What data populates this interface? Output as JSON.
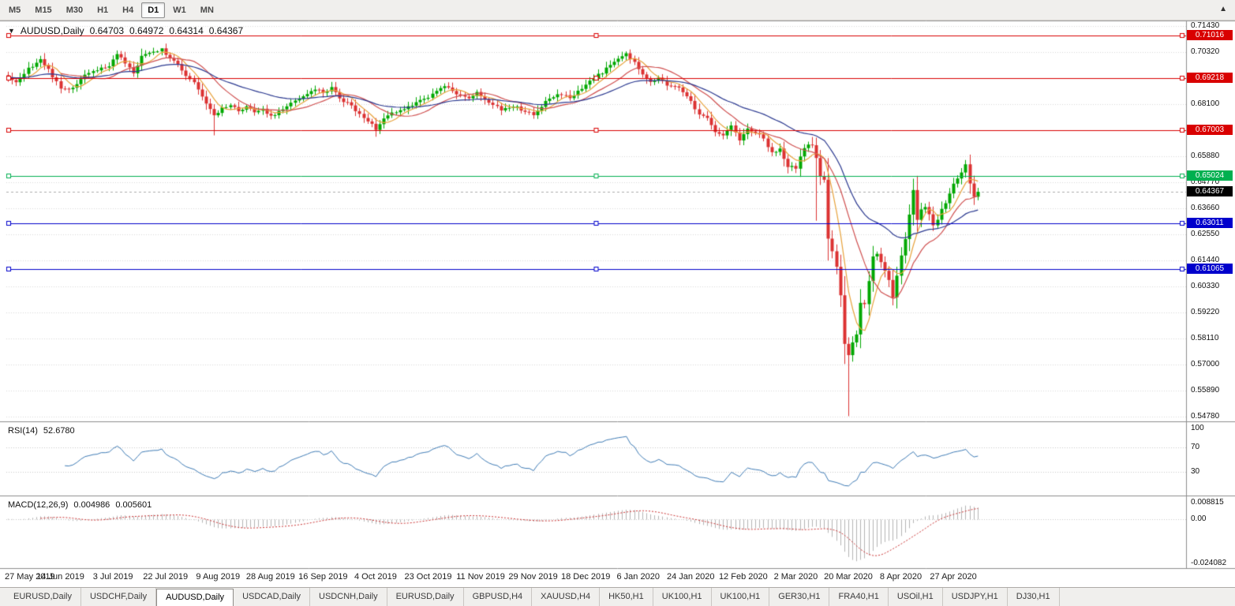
{
  "toolbar": {
    "timeframes": [
      {
        "label": "M5"
      },
      {
        "label": "M15"
      },
      {
        "label": "M30"
      },
      {
        "label": "H1"
      },
      {
        "label": "H4"
      },
      {
        "label": "D1",
        "active": true
      },
      {
        "label": "W1"
      },
      {
        "label": "MN"
      }
    ],
    "scroll_icon": "▲"
  },
  "chart": {
    "title": {
      "marker": "▼",
      "symbol": "AUDUSD,Daily",
      "open": "0.64703",
      "high": "0.64972",
      "low": "0.64314",
      "close": "0.64367"
    },
    "price_axis_labels": [
      "0.71430",
      "0.70320",
      "0.69210",
      "0.68100",
      "0.66990",
      "0.65880",
      "0.64770",
      "0.63660",
      "0.62550",
      "0.61440",
      "0.60330",
      "0.59220",
      "0.58110",
      "0.57000",
      "0.55890",
      "0.54780"
    ],
    "hlines": [
      {
        "price": 0.71016,
        "label": "0.71016",
        "color": "#d90000",
        "type": "resistance"
      },
      {
        "price": 0.69218,
        "label": "0.69218",
        "color": "#d90000",
        "type": "resistance"
      },
      {
        "price": 0.67003,
        "label": "0.67003",
        "color": "#d90000",
        "type": "resistance"
      },
      {
        "price": 0.65024,
        "label": "0.65024",
        "color": "#00b050",
        "type": "level"
      },
      {
        "price": 0.63011,
        "label": "0.63011",
        "color": "#0000cc",
        "type": "support"
      },
      {
        "price": 0.61065,
        "label": "0.61065",
        "color": "#0000cc",
        "type": "support"
      }
    ],
    "bid_line": {
      "price": 0.64367,
      "label": "0.64367",
      "bg": "#000000",
      "fg": "#ffffff"
    }
  },
  "rsi": {
    "name": "RSI(14)",
    "value": "52.6780",
    "axis_labels": [
      "100",
      "70",
      "30"
    ],
    "levels": [
      70,
      30
    ],
    "line_color": "#3f7cb6"
  },
  "macd": {
    "name": "MACD(12,26,9)",
    "value_main": "0.004986",
    "value_signal": "0.005601",
    "axis_labels": [
      "0.008815",
      "0.00",
      "-0.024082"
    ],
    "axis_max": 0.008815,
    "axis_min": -0.024082,
    "hist_color": "#b4b4b4",
    "signal_color": "#cc3333"
  },
  "date_axis": [
    "27 May 2019",
    "14 Jun 2019",
    "3 Jul 2019",
    "22 Jul 2019",
    "9 Aug 2019",
    "28 Aug 2019",
    "16 Sep 2019",
    "4 Oct 2019",
    "23 Oct 2019",
    "11 Nov 2019",
    "29 Nov 2019",
    "18 Dec 2019",
    "6 Jan 2020",
    "24 Jan 2020",
    "12 Feb 2020",
    "2 Mar 2020",
    "20 Mar 2020",
    "8 Apr 2020",
    "27 Apr 2020"
  ],
  "tabs": [
    {
      "label": "EURUSD,Daily"
    },
    {
      "label": "USDCHF,Daily"
    },
    {
      "label": "AUDUSD,Daily",
      "active": true
    },
    {
      "label": "USDCAD,Daily"
    },
    {
      "label": "USDCNH,Daily"
    },
    {
      "label": "EURUSD,Daily"
    },
    {
      "label": "GBPUSD,H4"
    },
    {
      "label": "XAUUSD,H4"
    },
    {
      "label": "HK50,H1"
    },
    {
      "label": "UK100,H1"
    },
    {
      "label": "UK100,H1"
    },
    {
      "label": "GER30,H1"
    },
    {
      "label": "FRA40,H1"
    },
    {
      "label": "USOil,H1"
    },
    {
      "label": "USDJPY,H1"
    },
    {
      "label": "DJ30,H1"
    }
  ],
  "chart_data": {
    "type": "candlestick",
    "symbol": "AUDUSD",
    "timeframe": "Daily",
    "bars": 241,
    "up_color": "#00a800",
    "down_color": "#dc3232",
    "grid_color": "#d8d8d8",
    "price_axis": {
      "top_price": 0.7143,
      "step": 0.0111,
      "gridlines": 16
    },
    "close_path": [
      [
        0,
        0.6921
      ],
      [
        2,
        0.6905
      ],
      [
        5,
        0.696
      ],
      [
        8,
        0.7
      ],
      [
        10,
        0.6958
      ],
      [
        13,
        0.6875
      ],
      [
        16,
        0.688
      ],
      [
        19,
        0.693
      ],
      [
        22,
        0.6958
      ],
      [
        25,
        0.6965
      ],
      [
        27,
        0.7028
      ],
      [
        29,
        0.6985
      ],
      [
        31,
        0.6938
      ],
      [
        33,
        0.7015
      ],
      [
        36,
        0.7038
      ],
      [
        38,
        0.7042
      ],
      [
        40,
        0.701
      ],
      [
        42,
        0.6975
      ],
      [
        44,
        0.6935
      ],
      [
        46,
        0.69
      ],
      [
        48,
        0.6845
      ],
      [
        51,
        0.676
      ],
      [
        53,
        0.6795
      ],
      [
        55,
        0.681
      ],
      [
        57,
        0.678
      ],
      [
        59,
        0.68
      ],
      [
        61,
        0.6775
      ],
      [
        63,
        0.6785
      ],
      [
        65,
        0.6758
      ],
      [
        68,
        0.679
      ],
      [
        71,
        0.683
      ],
      [
        74,
        0.6858
      ],
      [
        76,
        0.6868
      ],
      [
        78,
        0.6862
      ],
      [
        80,
        0.688
      ],
      [
        82,
        0.6835
      ],
      [
        85,
        0.68
      ],
      [
        88,
        0.6755
      ],
      [
        91,
        0.6705
      ],
      [
        93,
        0.6745
      ],
      [
        96,
        0.678
      ],
      [
        99,
        0.68
      ],
      [
        102,
        0.6825
      ],
      [
        105,
        0.685
      ],
      [
        108,
        0.689
      ],
      [
        111,
        0.6855
      ],
      [
        114,
        0.684
      ],
      [
        116,
        0.6862
      ],
      [
        119,
        0.682
      ],
      [
        122,
        0.6788
      ],
      [
        125,
        0.6805
      ],
      [
        127,
        0.6785
      ],
      [
        130,
        0.6768
      ],
      [
        133,
        0.682
      ],
      [
        136,
        0.6852
      ],
      [
        139,
        0.684
      ],
      [
        142,
        0.688
      ],
      [
        145,
        0.692
      ],
      [
        148,
        0.696
      ],
      [
        151,
        0.7
      ],
      [
        153,
        0.703
      ],
      [
        155,
        0.6985
      ],
      [
        157,
        0.6935
      ],
      [
        159,
        0.69
      ],
      [
        161,
        0.6925
      ],
      [
        163,
        0.6895
      ],
      [
        166,
        0.6875
      ],
      [
        169,
        0.6828
      ],
      [
        171,
        0.676
      ],
      [
        173,
        0.6755
      ],
      [
        175,
        0.669
      ],
      [
        177,
        0.668
      ],
      [
        179,
        0.672
      ],
      [
        181,
        0.6655
      ],
      [
        183,
        0.671
      ],
      [
        185,
        0.669
      ],
      [
        187,
        0.6665
      ],
      [
        189,
        0.66
      ],
      [
        191,
        0.6615
      ],
      [
        193,
        0.6545
      ],
      [
        195,
        0.6537
      ],
      [
        196,
        0.6587
      ],
      [
        197,
        0.6623
      ],
      [
        198,
        0.6638
      ],
      [
        199,
        0.664
      ],
      [
        200,
        0.658
      ],
      [
        201,
        0.65
      ],
      [
        202,
        0.649
      ],
      [
        203,
        0.6232
      ],
      [
        204,
        0.6185
      ],
      [
        205,
        0.612
      ],
      [
        206,
        0.5995
      ],
      [
        207,
        0.5785
      ],
      [
        208,
        0.5745
      ],
      [
        209,
        0.5795
      ],
      [
        210,
        0.5825
      ],
      [
        211,
        0.5965
      ],
      [
        212,
        0.5955
      ],
      [
        213,
        0.606
      ],
      [
        214,
        0.6165
      ],
      [
        215,
        0.617
      ],
      [
        216,
        0.6135
      ],
      [
        217,
        0.6095
      ],
      [
        218,
        0.606
      ],
      [
        219,
        0.599
      ],
      [
        220,
        0.6085
      ],
      [
        221,
        0.6165
      ],
      [
        222,
        0.623
      ],
      [
        223,
        0.6335
      ],
      [
        224,
        0.644
      ],
      [
        225,
        0.632
      ],
      [
        226,
        0.6365
      ],
      [
        227,
        0.6365
      ],
      [
        228,
        0.6335
      ],
      [
        229,
        0.629
      ],
      [
        230,
        0.632
      ],
      [
        231,
        0.637
      ],
      [
        232,
        0.639
      ],
      [
        233,
        0.6425
      ],
      [
        234,
        0.6465
      ],
      [
        235,
        0.649
      ],
      [
        236,
        0.6525
      ],
      [
        237,
        0.6548
      ],
      [
        238,
        0.647
      ],
      [
        239,
        0.642
      ],
      [
        240,
        0.6437
      ]
    ],
    "wick_lows": [
      [
        51,
        0.6677
      ],
      [
        91,
        0.6671
      ],
      [
        200,
        0.6313
      ],
      [
        208,
        0.548
      ]
    ],
    "wick_highs": [
      [
        38,
        0.7047
      ],
      [
        153,
        0.7035
      ],
      [
        199,
        0.667
      ],
      [
        237,
        0.6572
      ]
    ],
    "ma": [
      {
        "period": 6,
        "type": "sma",
        "color": "#e8a33d"
      },
      {
        "period": 14,
        "type": "sma",
        "color": "#d05050"
      },
      {
        "period": 34,
        "type": "ema",
        "color": "#2b3990"
      }
    ]
  }
}
